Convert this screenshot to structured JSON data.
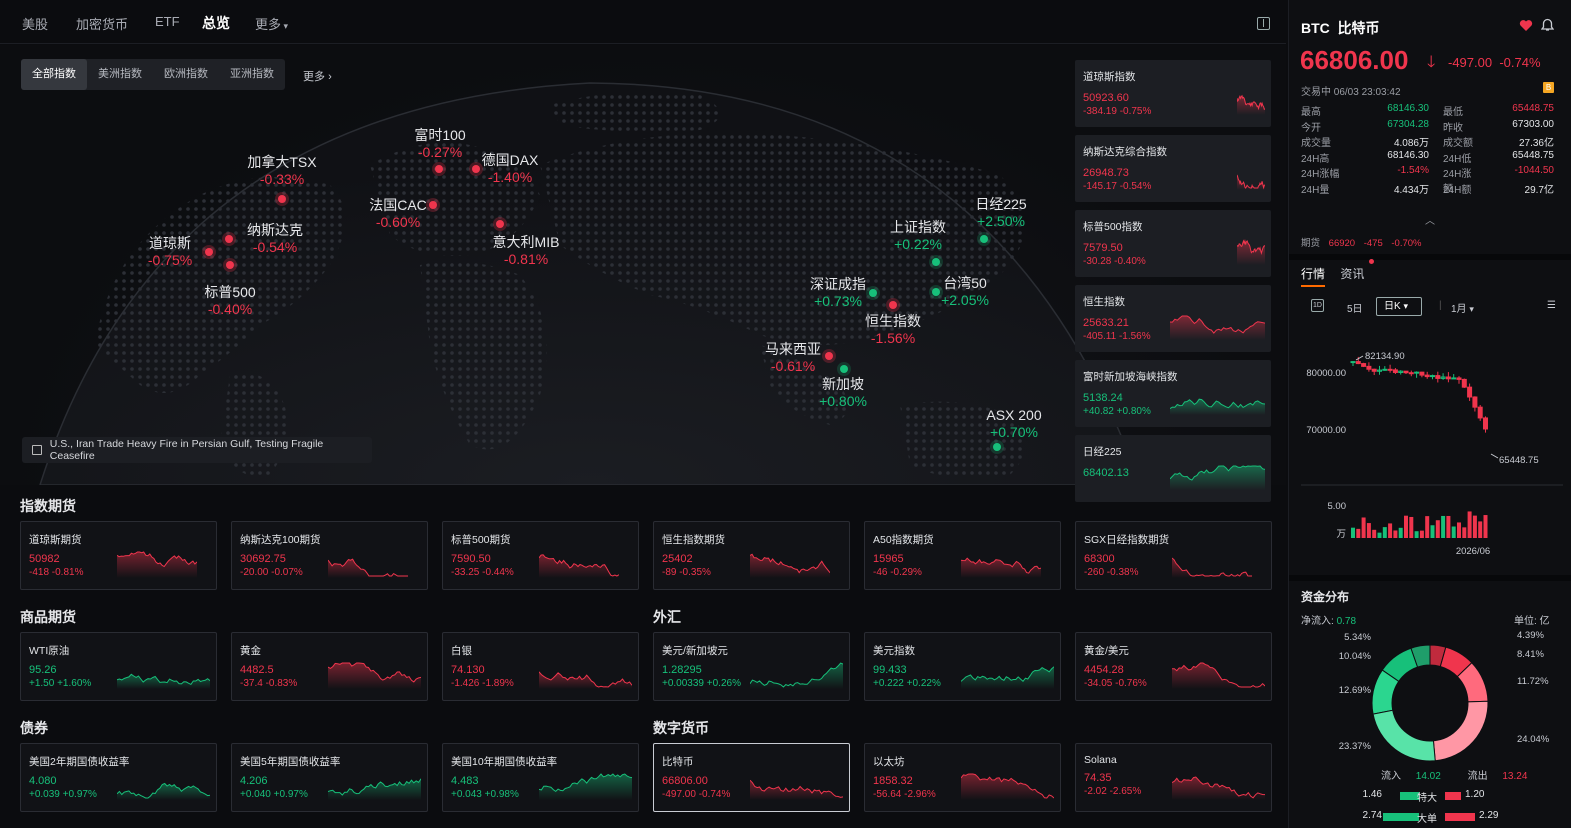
{
  "nav": {
    "tabs": [
      {
        "label": "美股"
      },
      {
        "label": "加密货币"
      },
      {
        "label": "ETF"
      },
      {
        "label": "总览",
        "active": true
      },
      {
        "label": "更多"
      }
    ]
  },
  "map": {
    "region_tabs": [
      "全部指数",
      "美洲指数",
      "欧洲指数",
      "亚洲指数"
    ],
    "more": "更多",
    "markers": [
      {
        "name": "道琼斯",
        "pct": "-0.75%",
        "dir": "down"
      },
      {
        "name": "纳斯达克",
        "pct": "-0.54%",
        "dir": "down"
      },
      {
        "name": "标普500",
        "pct": "-0.40%",
        "dir": "down"
      },
      {
        "name": "加拿大TSX",
        "pct": "-0.33%",
        "dir": "down"
      },
      {
        "name": "富时100",
        "pct": "-0.27%",
        "dir": "down"
      },
      {
        "name": "德国DAX",
        "pct": "-1.40%",
        "dir": "down"
      },
      {
        "name": "法国CAC",
        "pct": "-0.60%",
        "dir": "down"
      },
      {
        "name": "意大利MIB",
        "pct": "-0.81%",
        "dir": "down"
      },
      {
        "name": "日经225",
        "pct": "+2.50%",
        "dir": "up"
      },
      {
        "name": "上证指数",
        "pct": "+0.22%",
        "dir": "up"
      },
      {
        "name": "深证成指",
        "pct": "+0.73%",
        "dir": "up"
      },
      {
        "name": "台湾50",
        "pct": "+2.05%",
        "dir": "up"
      },
      {
        "name": "恒生指数",
        "pct": "-1.56%",
        "dir": "down"
      },
      {
        "name": "马来西亚",
        "pct": "-0.61%",
        "dir": "down"
      },
      {
        "name": "新加坡",
        "pct": "+0.80%",
        "dir": "up"
      },
      {
        "name": "ASX 200",
        "pct": "+0.70%",
        "dir": "up"
      }
    ],
    "news": "U.S., Iran Trade Heavy Fire in Persian Gulf, Testing Fragile Ceasefire"
  },
  "index_cards": [
    {
      "title": "道琼斯指数",
      "value": "50923.60",
      "change": "-384.19 -0.75%",
      "dir": "down"
    },
    {
      "title": "纳斯达克综合指数",
      "value": "26948.73",
      "change": "-145.17 -0.54%",
      "dir": "down"
    },
    {
      "title": "标普500指数",
      "value": "7579.50",
      "change": "-30.28 -0.40%",
      "dir": "down"
    },
    {
      "title": "恒生指数",
      "value": "25633.21",
      "change": "-405.11 -1.56%",
      "dir": "down"
    },
    {
      "title": "富时新加坡海峡指数",
      "value": "5138.24",
      "change": "+40.82 +0.80%",
      "dir": "up"
    },
    {
      "title": "日经225",
      "value": "68402.13",
      "change": "",
      "dir": "up"
    }
  ],
  "sections": {
    "index_futures": {
      "title": "指数期货",
      "items": [
        {
          "title": "道琼斯期货",
          "value": "50982",
          "change": "-418 -0.81%",
          "dir": "down"
        },
        {
          "title": "纳斯达克100期货",
          "value": "30692.75",
          "change": "-20.00 -0.07%",
          "dir": "down"
        },
        {
          "title": "标普500期货",
          "value": "7590.50",
          "change": "-33.25 -0.44%",
          "dir": "down"
        },
        {
          "title": "恒生指数期货",
          "value": "25402",
          "change": "-89 -0.35%",
          "dir": "down"
        },
        {
          "title": "A50指数期货",
          "value": "15965",
          "change": "-46 -0.29%",
          "dir": "down"
        },
        {
          "title": "SGX日经指数期货",
          "value": "68300",
          "change": "-260 -0.38%",
          "dir": "down"
        }
      ]
    },
    "commodities": {
      "title": "商品期货",
      "items": [
        {
          "title": "WTI原油",
          "value": "95.26",
          "change": "+1.50 +1.60%",
          "dir": "up"
        },
        {
          "title": "黄金",
          "value": "4482.5",
          "change": "-37.4 -0.83%",
          "dir": "down"
        },
        {
          "title": "白银",
          "value": "74.130",
          "change": "-1.426 -1.89%",
          "dir": "down"
        }
      ]
    },
    "forex": {
      "title": "外汇",
      "items": [
        {
          "title": "美元/新加坡元",
          "value": "1.28295",
          "change": "+0.00339 +0.26%",
          "dir": "up"
        },
        {
          "title": "美元指数",
          "value": "99.433",
          "change": "+0.222 +0.22%",
          "dir": "up"
        },
        {
          "title": "黄金/美元",
          "value": "4454.28",
          "change": "-34.05 -0.76%",
          "dir": "down"
        }
      ]
    },
    "bonds": {
      "title": "债券",
      "items": [
        {
          "title": "美国2年期国债收益率",
          "value": "4.080",
          "change": "+0.039 +0.97%",
          "dir": "up"
        },
        {
          "title": "美国5年期国债收益率",
          "value": "4.206",
          "change": "+0.040 +0.97%",
          "dir": "up"
        },
        {
          "title": "美国10年期国债收益率",
          "value": "4.483",
          "change": "+0.043 +0.98%",
          "dir": "up"
        }
      ]
    },
    "crypto": {
      "title": "数字货币",
      "items": [
        {
          "title": "比特币",
          "value": "66806.00",
          "change": "-497.00 -0.74%",
          "dir": "down",
          "selected": true
        },
        {
          "title": "以太坊",
          "value": "1858.32",
          "change": "-56.64 -2.96%",
          "dir": "down"
        },
        {
          "title": "Solana",
          "value": "74.35",
          "change": "-2.02 -2.65%",
          "dir": "down"
        }
      ]
    }
  },
  "btc": {
    "symbol": "BTC",
    "name": "比特币",
    "price": "66806.00",
    "change": "-497.00",
    "pct": "-0.74%",
    "status": "交易中 06/03 23:03:42",
    "badge": "B",
    "stats": [
      {
        "l1": "最高",
        "v1": "68146.30",
        "c1": "up",
        "l2": "最低",
        "v2": "65448.75",
        "c2": "down"
      },
      {
        "l1": "今开",
        "v1": "67304.28",
        "c1": "up",
        "l2": "昨收",
        "v2": "67303.00",
        "c2": "white"
      },
      {
        "l1": "成交量",
        "v1": "4.086万",
        "c1": "white",
        "l2": "成交额",
        "v2": "27.36亿",
        "c2": "white"
      },
      {
        "l1": "24H高",
        "v1": "68146.30",
        "c1": "white",
        "l2": "24H低",
        "v2": "65448.75",
        "c2": "white"
      },
      {
        "l1": "24H涨幅",
        "v1": "-1.54%",
        "c1": "down",
        "l2": "24H涨额",
        "v2": "-1044.50",
        "c2": "down"
      },
      {
        "l1": "24H量",
        "v1": "4.434万",
        "c1": "white",
        "l2": "24H额",
        "v2": "29.7亿",
        "c2": "white"
      }
    ],
    "futures": {
      "label": "期货",
      "price": "66920",
      "change": "-475",
      "pct": "-0.70%"
    },
    "tabs": [
      "行情",
      "资讯"
    ],
    "chart_tools": {
      "t1": "1D",
      "t2": "5日",
      "t3": "日K",
      "t4": "1月"
    },
    "chart": {
      "y_labels": [
        "80000.00",
        "70000.00"
      ],
      "hi_label": "82134.90",
      "lo_label": "65448.75",
      "vol_label": "5.00",
      "vol_unit": "万",
      "date_label": "2026/06"
    },
    "flow": {
      "title": "资金分布",
      "net_label": "净流入:",
      "net_value": "0.78",
      "unit": "单位: 亿",
      "donut_labels": [
        "5.34%",
        "10.04%",
        "12.69%",
        "23.37%",
        "4.39%",
        "8.41%",
        "11.72%",
        "24.04%"
      ],
      "in_label": "流入",
      "in_value": "14.02",
      "out_label": "流出",
      "out_value": "13.24",
      "rows": [
        {
          "a": "1.46",
          "label": "特大",
          "b": "1.20"
        },
        {
          "a": "2.74",
          "label": "大单",
          "b": "2.29"
        }
      ]
    }
  },
  "colors": {
    "up": "#17c07a",
    "down": "#f0354d",
    "accent": "#ff6a00"
  }
}
